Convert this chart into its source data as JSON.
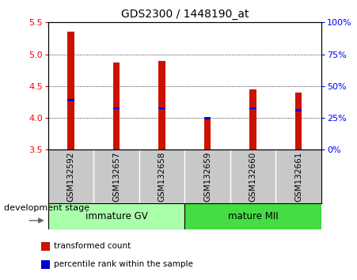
{
  "title": "GDS2300 / 1448190_at",
  "samples": [
    "GSM132592",
    "GSM132657",
    "GSM132658",
    "GSM132659",
    "GSM132660",
    "GSM132661"
  ],
  "bar_values": [
    5.36,
    4.87,
    4.9,
    3.98,
    4.45,
    4.4
  ],
  "percentile_values": [
    4.28,
    4.15,
    4.15,
    4.0,
    4.15,
    4.12
  ],
  "base": 3.5,
  "ylim": [
    3.5,
    5.5
  ],
  "bar_color": "#cc1100",
  "percentile_color": "#0000cc",
  "yticks_left": [
    3.5,
    4.0,
    4.5,
    5.0,
    5.5
  ],
  "yticks_right": [
    0,
    25,
    50,
    75,
    100
  ],
  "groups": [
    {
      "label": "immature GV",
      "start": 0,
      "end": 2,
      "color": "#aaffaa"
    },
    {
      "label": "mature MII",
      "start": 3,
      "end": 5,
      "color": "#44dd44"
    }
  ],
  "group_label": "development stage",
  "legend_items": [
    {
      "label": "transformed count",
      "color": "#cc1100"
    },
    {
      "label": "percentile rank within the sample",
      "color": "#0000cc"
    }
  ],
  "background_plot": "#ffffff",
  "background_label": "#c8c8c8",
  "bar_width": 0.15
}
